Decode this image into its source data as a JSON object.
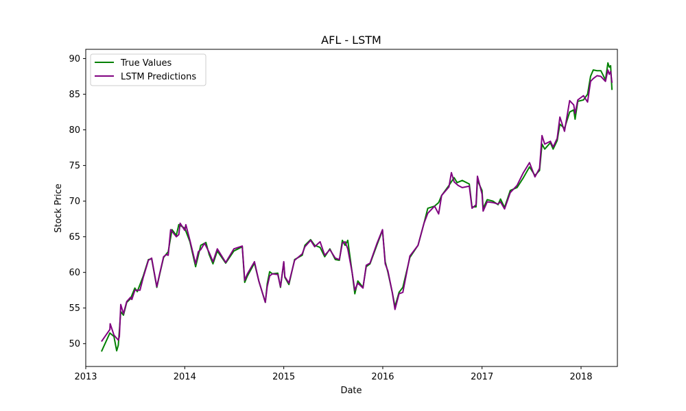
{
  "chart_data": {
    "type": "line",
    "title": "AFL - LSTM",
    "xlabel": "Date",
    "ylabel": "Stock Price",
    "xlim": [
      "2013-01-01",
      "2018-05-15"
    ],
    "ylim": [
      46.8,
      91.3
    ],
    "x_ticks": [
      "2013-01-01",
      "2014-01-01",
      "2015-01-01",
      "2016-01-01",
      "2017-01-01",
      "2018-01-01"
    ],
    "x_tick_labels": [
      "2013",
      "2014",
      "2015",
      "2016",
      "2017",
      "2018"
    ],
    "y_ticks": [
      50,
      55,
      60,
      65,
      70,
      75,
      80,
      85,
      90
    ],
    "y_tick_labels": [
      "50",
      "55",
      "60",
      "65",
      "70",
      "75",
      "80",
      "85",
      "90"
    ],
    "grid": false,
    "legend_position": "top-left",
    "series": [
      {
        "name": "True Values",
        "color": "#008000",
        "points": [
          [
            "2013-02-28",
            48.9
          ],
          [
            "2013-03-31",
            51.5
          ],
          [
            "2013-04-15",
            51.0
          ],
          [
            "2013-04-25",
            49.0
          ],
          [
            "2013-05-01",
            49.8
          ],
          [
            "2013-05-10",
            54.5
          ],
          [
            "2013-05-20",
            54.0
          ],
          [
            "2013-06-01",
            55.8
          ],
          [
            "2013-06-15",
            56.3
          ],
          [
            "2013-07-01",
            57.8
          ],
          [
            "2013-07-10",
            57.3
          ],
          [
            "2013-08-01",
            59.5
          ],
          [
            "2013-08-20",
            61.8
          ],
          [
            "2013-09-01",
            61.9
          ],
          [
            "2013-09-20",
            57.9
          ],
          [
            "2013-10-01",
            59.8
          ],
          [
            "2013-10-15",
            62.1
          ],
          [
            "2013-11-01",
            62.9
          ],
          [
            "2013-11-15",
            66.0
          ],
          [
            "2013-12-01",
            65.2
          ],
          [
            "2013-12-10",
            66.7
          ],
          [
            "2014-01-01",
            66.2
          ],
          [
            "2014-01-20",
            64.3
          ],
          [
            "2014-02-10",
            60.8
          ],
          [
            "2014-03-01",
            63.8
          ],
          [
            "2014-03-20",
            64.2
          ],
          [
            "2014-04-01",
            62.5
          ],
          [
            "2014-04-15",
            61.2
          ],
          [
            "2014-05-01",
            63.0
          ],
          [
            "2014-06-01",
            61.3
          ],
          [
            "2014-07-01",
            63.0
          ],
          [
            "2014-08-01",
            63.6
          ],
          [
            "2014-08-10",
            58.6
          ],
          [
            "2014-08-20",
            59.5
          ],
          [
            "2014-09-15",
            61.3
          ],
          [
            "2014-10-01",
            58.8
          ],
          [
            "2014-10-25",
            55.8
          ],
          [
            "2014-11-01",
            58.4
          ],
          [
            "2014-11-10",
            60.1
          ],
          [
            "2014-11-20",
            59.8
          ],
          [
            "2014-12-10",
            59.9
          ],
          [
            "2014-12-20",
            57.9
          ],
          [
            "2015-01-01",
            61.4
          ],
          [
            "2015-01-05",
            59.3
          ],
          [
            "2015-01-20",
            58.3
          ],
          [
            "2015-02-10",
            61.8
          ],
          [
            "2015-03-10",
            62.4
          ],
          [
            "2015-03-20",
            63.8
          ],
          [
            "2015-04-10",
            64.6
          ],
          [
            "2015-04-25",
            63.8
          ],
          [
            "2015-05-15",
            63.5
          ],
          [
            "2015-06-01",
            62.2
          ],
          [
            "2015-06-20",
            63.3
          ],
          [
            "2015-07-10",
            61.8
          ],
          [
            "2015-07-25",
            61.7
          ],
          [
            "2015-08-05",
            64.5
          ],
          [
            "2015-08-15",
            63.8
          ],
          [
            "2015-08-25",
            64.5
          ],
          [
            "2015-09-10",
            60.0
          ],
          [
            "2015-09-20",
            57.0
          ],
          [
            "2015-10-01",
            58.8
          ],
          [
            "2015-10-20",
            57.9
          ],
          [
            "2015-11-01",
            60.8
          ],
          [
            "2015-11-15",
            61.2
          ],
          [
            "2015-12-10",
            63.8
          ],
          [
            "2015-12-31",
            65.9
          ],
          [
            "2016-01-10",
            61.5
          ],
          [
            "2016-01-20",
            60.0
          ],
          [
            "2016-02-05",
            57.2
          ],
          [
            "2016-02-15",
            55.2
          ],
          [
            "2016-03-01",
            57.2
          ],
          [
            "2016-03-15",
            57.9
          ],
          [
            "2016-04-10",
            62.1
          ],
          [
            "2016-05-10",
            63.8
          ],
          [
            "2016-06-01",
            66.9
          ],
          [
            "2016-06-15",
            69.0
          ],
          [
            "2016-07-10",
            69.3
          ],
          [
            "2016-07-25",
            69.8
          ],
          [
            "2016-08-05",
            70.8
          ],
          [
            "2016-09-01",
            72.2
          ],
          [
            "2016-09-20",
            73.3
          ],
          [
            "2016-10-01",
            72.6
          ],
          [
            "2016-10-20",
            72.9
          ],
          [
            "2016-11-15",
            72.4
          ],
          [
            "2016-11-25",
            69.2
          ],
          [
            "2016-12-10",
            69.2
          ],
          [
            "2016-12-15",
            72.9
          ],
          [
            "2017-01-01",
            71.5
          ],
          [
            "2017-01-05",
            69.0
          ],
          [
            "2017-01-20",
            70.2
          ],
          [
            "2017-02-10",
            70.0
          ],
          [
            "2017-03-01",
            69.5
          ],
          [
            "2017-03-10",
            70.3
          ],
          [
            "2017-03-25",
            69.1
          ],
          [
            "2017-04-15",
            71.5
          ],
          [
            "2017-05-10",
            71.9
          ],
          [
            "2017-06-01",
            73.2
          ],
          [
            "2017-06-25",
            74.8
          ],
          [
            "2017-07-15",
            73.6
          ],
          [
            "2017-08-01",
            74.3
          ],
          [
            "2017-08-10",
            78.0
          ],
          [
            "2017-08-20",
            77.3
          ],
          [
            "2017-09-10",
            78.2
          ],
          [
            "2017-09-20",
            77.3
          ],
          [
            "2017-10-05",
            78.5
          ],
          [
            "2017-10-15",
            80.8
          ],
          [
            "2017-11-01",
            80.2
          ],
          [
            "2017-11-20",
            82.5
          ],
          [
            "2017-12-05",
            82.8
          ],
          [
            "2017-12-10",
            81.5
          ],
          [
            "2017-12-20",
            84.0
          ],
          [
            "2018-01-10",
            84.2
          ],
          [
            "2018-01-25",
            85.0
          ],
          [
            "2018-02-05",
            87.5
          ],
          [
            "2018-02-15",
            88.4
          ],
          [
            "2018-03-01",
            88.3
          ],
          [
            "2018-03-15",
            88.3
          ],
          [
            "2018-04-01",
            87.0
          ],
          [
            "2018-04-10",
            89.4
          ],
          [
            "2018-04-15",
            88.8
          ],
          [
            "2018-04-20",
            89.0
          ],
          [
            "2018-04-25",
            85.6
          ]
        ]
      },
      {
        "name": "LSTM Predictions",
        "color": "#800080",
        "points": [
          [
            "2013-02-28",
            50.3
          ],
          [
            "2013-03-31",
            52.0
          ],
          [
            "2013-04-01",
            52.8
          ],
          [
            "2013-04-15",
            51.2
          ],
          [
            "2013-05-01",
            50.5
          ],
          [
            "2013-05-05",
            51.0
          ],
          [
            "2013-05-10",
            55.5
          ],
          [
            "2013-05-20",
            54.2
          ],
          [
            "2013-06-01",
            55.9
          ],
          [
            "2013-06-15",
            56.5
          ],
          [
            "2013-06-20",
            56.2
          ],
          [
            "2013-07-01",
            57.5
          ],
          [
            "2013-07-20",
            57.5
          ],
          [
            "2013-08-01",
            59.3
          ],
          [
            "2013-08-20",
            61.7
          ],
          [
            "2013-09-01",
            62.0
          ],
          [
            "2013-09-20",
            58.0
          ],
          [
            "2013-10-01",
            59.9
          ],
          [
            "2013-10-15",
            62.2
          ],
          [
            "2013-10-25",
            62.5
          ],
          [
            "2013-11-01",
            62.4
          ],
          [
            "2013-11-10",
            66.0
          ],
          [
            "2013-12-01",
            65.0
          ],
          [
            "2013-12-10",
            65.3
          ],
          [
            "2013-12-15",
            66.9
          ],
          [
            "2014-01-01",
            65.9
          ],
          [
            "2014-01-05",
            66.7
          ],
          [
            "2014-01-20",
            64.5
          ],
          [
            "2014-02-10",
            61.2
          ],
          [
            "2014-02-20",
            62.9
          ],
          [
            "2014-03-01",
            63.2
          ],
          [
            "2014-03-15",
            64.1
          ],
          [
            "2014-04-01",
            62.8
          ],
          [
            "2014-04-15",
            61.5
          ],
          [
            "2014-05-01",
            63.3
          ],
          [
            "2014-06-01",
            61.4
          ],
          [
            "2014-07-01",
            63.3
          ],
          [
            "2014-08-01",
            63.7
          ],
          [
            "2014-08-10",
            58.9
          ],
          [
            "2014-08-20",
            59.8
          ],
          [
            "2014-09-15",
            61.5
          ],
          [
            "2014-10-01",
            58.8
          ],
          [
            "2014-10-25",
            55.8
          ],
          [
            "2014-11-01",
            58.0
          ],
          [
            "2014-11-10",
            59.5
          ],
          [
            "2014-11-20",
            59.8
          ],
          [
            "2014-12-10",
            59.7
          ],
          [
            "2014-12-20",
            58.0
          ],
          [
            "2015-01-01",
            61.5
          ],
          [
            "2015-01-05",
            59.4
          ],
          [
            "2015-01-20",
            58.5
          ],
          [
            "2015-02-10",
            61.7
          ],
          [
            "2015-03-10",
            62.6
          ],
          [
            "2015-03-20",
            63.6
          ],
          [
            "2015-04-10",
            64.5
          ],
          [
            "2015-04-25",
            63.6
          ],
          [
            "2015-05-15",
            64.3
          ],
          [
            "2015-06-01",
            62.4
          ],
          [
            "2015-06-20",
            63.2
          ],
          [
            "2015-07-10",
            62.0
          ],
          [
            "2015-07-25",
            61.8
          ],
          [
            "2015-08-05",
            64.1
          ],
          [
            "2015-08-15",
            64.3
          ],
          [
            "2015-08-25",
            63.3
          ],
          [
            "2015-09-10",
            60.0
          ],
          [
            "2015-09-20",
            57.5
          ],
          [
            "2015-10-01",
            58.5
          ],
          [
            "2015-10-20",
            57.8
          ],
          [
            "2015-11-01",
            61.0
          ],
          [
            "2015-11-15",
            61.3
          ],
          [
            "2015-12-10",
            64.0
          ],
          [
            "2015-12-31",
            66.0
          ],
          [
            "2016-01-10",
            61.2
          ],
          [
            "2016-01-20",
            60.2
          ],
          [
            "2016-02-05",
            57.2
          ],
          [
            "2016-02-15",
            54.8
          ],
          [
            "2016-03-01",
            57.0
          ],
          [
            "2016-03-15",
            57.2
          ],
          [
            "2016-04-10",
            62.3
          ],
          [
            "2016-05-10",
            63.8
          ],
          [
            "2016-06-01",
            66.9
          ],
          [
            "2016-06-15",
            68.3
          ],
          [
            "2016-07-10",
            69.3
          ],
          [
            "2016-07-25",
            68.2
          ],
          [
            "2016-08-05",
            70.8
          ],
          [
            "2016-09-01",
            72.0
          ],
          [
            "2016-09-10",
            74.0
          ],
          [
            "2016-09-20",
            72.7
          ],
          [
            "2016-10-05",
            72.2
          ],
          [
            "2016-10-20",
            71.9
          ],
          [
            "2016-11-15",
            72.1
          ],
          [
            "2016-11-25",
            69.0
          ],
          [
            "2016-12-10",
            69.5
          ],
          [
            "2016-12-15",
            73.5
          ],
          [
            "2017-01-01",
            71.0
          ],
          [
            "2017-01-05",
            68.6
          ],
          [
            "2017-01-20",
            69.9
          ],
          [
            "2017-02-10",
            69.8
          ],
          [
            "2017-03-01",
            69.6
          ],
          [
            "2017-03-10",
            69.9
          ],
          [
            "2017-03-25",
            68.9
          ],
          [
            "2017-04-15",
            71.2
          ],
          [
            "2017-05-10",
            72.2
          ],
          [
            "2017-06-01",
            73.9
          ],
          [
            "2017-06-25",
            75.4
          ],
          [
            "2017-07-15",
            73.4
          ],
          [
            "2017-08-01",
            74.6
          ],
          [
            "2017-08-10",
            79.2
          ],
          [
            "2017-08-20",
            78.0
          ],
          [
            "2017-09-10",
            78.4
          ],
          [
            "2017-09-20",
            77.6
          ],
          [
            "2017-10-05",
            78.8
          ],
          [
            "2017-10-15",
            81.8
          ],
          [
            "2017-11-01",
            79.8
          ],
          [
            "2017-11-20",
            84.1
          ],
          [
            "2017-12-05",
            83.5
          ],
          [
            "2017-12-10",
            82.3
          ],
          [
            "2017-12-20",
            84.2
          ],
          [
            "2018-01-10",
            84.8
          ],
          [
            "2018-01-25",
            83.9
          ],
          [
            "2018-02-05",
            86.8
          ],
          [
            "2018-02-15",
            87.2
          ],
          [
            "2018-03-01",
            87.6
          ],
          [
            "2018-03-15",
            87.5
          ],
          [
            "2018-04-01",
            86.8
          ],
          [
            "2018-04-10",
            88.4
          ],
          [
            "2018-04-15",
            87.8
          ],
          [
            "2018-04-20",
            88.2
          ],
          [
            "2018-04-25",
            86.6
          ]
        ]
      }
    ]
  }
}
